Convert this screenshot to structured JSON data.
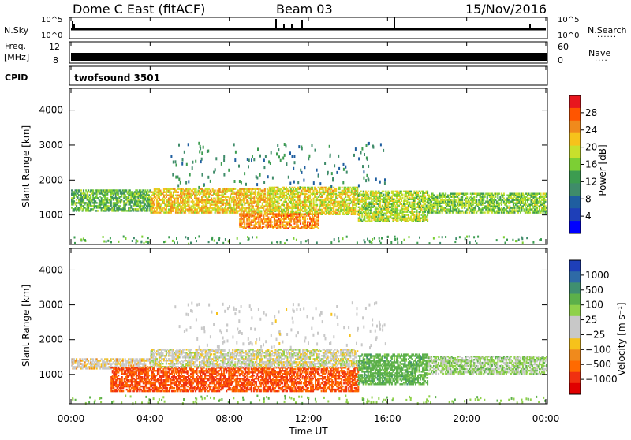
{
  "header": {
    "site": "Dome C East (fitACF)",
    "beam": "Beam 03",
    "date": "15/Nov/2016"
  },
  "strip": {
    "nsky_label": "N.Sky",
    "nsky_top": "10^5",
    "nsky_bottom": "10^0",
    "nsearch_label": "N.Search",
    "nsearch_top": "10^5",
    "nsearch_bottom": "10^0",
    "freq_label": "Freq.",
    "freq_unit": "[MHz]",
    "freq_top": "12",
    "freq_bottom": "8",
    "nave_label": "Nave",
    "nave_top": "60",
    "nave_bottom": "0",
    "cpid_label": "CPID",
    "cpid_value": "twofsound 3501"
  },
  "power_panel": {
    "ylabel": "Slant Range [km]",
    "cbar_label": "Power [dB]",
    "cbar_ticks": [
      "28",
      "24",
      "20",
      "16",
      "12",
      "8",
      "4"
    ],
    "cbar_colors": [
      "#e8161e",
      "#ff5500",
      "#f08a1c",
      "#f6c21b",
      "#c8e02c",
      "#7ccf34",
      "#3c9c50",
      "#3f8c6a",
      "#1f5ea0",
      "#1e3fb8",
      "#0000ff"
    ]
  },
  "velocity_panel": {
    "ylabel": "Slant Range [km]",
    "cbar_label": "Velocity [m s⁻¹]",
    "cbar_ticks": [
      "1000",
      "500",
      "100",
      "25",
      "−25",
      "−100",
      "−500",
      "−1000"
    ],
    "cbar_colors": [
      "#1e3fb8",
      "#2e6aa6",
      "#3f8f70",
      "#5cb04a",
      "#8fd14a",
      "#c8c8c8",
      "#c8c8c8",
      "#f6c21b",
      "#f08a1c",
      "#ff6a00",
      "#f03010",
      "#e00000"
    ]
  },
  "xaxis": {
    "label": "Time UT",
    "ticks": [
      "00:00",
      "04:00",
      "08:00",
      "12:00",
      "16:00",
      "20:00",
      "00:00"
    ]
  },
  "chart_data": [
    {
      "type": "heatmap",
      "title": "Dome C East (fitACF)  Beam 03  15/Nov/2016",
      "xlabel": "Time UT",
      "ylabel": "Slant Range [km]",
      "colorbar_label": "Power [dB]",
      "x_range_hours": [
        0,
        24
      ],
      "ylim": [
        180,
        4600
      ],
      "yticks": [
        1000,
        2000,
        3000,
        4000
      ],
      "clim": [
        0,
        32
      ],
      "regions": [
        {
          "t": [
            0.0,
            4.0
          ],
          "range": [
            1100,
            1700
          ],
          "level": 14
        },
        {
          "t": [
            4.0,
            10.0
          ],
          "range": [
            1050,
            1750
          ],
          "level": 22
        },
        {
          "t": [
            10.0,
            14.5
          ],
          "range": [
            1000,
            1800
          ],
          "level": 20
        },
        {
          "t": [
            14.5,
            18.0
          ],
          "range": [
            800,
            1700
          ],
          "level": 18
        },
        {
          "t": [
            18.0,
            24.0
          ],
          "range": [
            1050,
            1600
          ],
          "level": 16
        },
        {
          "t": [
            8.5,
            12.5
          ],
          "range": [
            600,
            1050
          ],
          "level": 26
        }
      ]
    },
    {
      "type": "heatmap",
      "xlabel": "Time UT",
      "ylabel": "Slant Range [km]",
      "colorbar_label": "Velocity [m s^-1]",
      "x_range_hours": [
        0,
        24
      ],
      "ylim": [
        180,
        4600
      ],
      "yticks": [
        1000,
        2000,
        3000,
        4000
      ],
      "clim": [
        -1000,
        1000
      ],
      "regions": [
        {
          "t": [
            0.0,
            4.0
          ],
          "range": [
            1150,
            1450
          ],
          "velocity": -10
        },
        {
          "t": [
            2.0,
            14.5
          ],
          "range": [
            500,
            1200
          ],
          "velocity": -200
        },
        {
          "t": [
            4.0,
            14.5
          ],
          "range": [
            1200,
            1700
          ],
          "velocity": 10
        },
        {
          "t": [
            14.5,
            18.0
          ],
          "range": [
            700,
            1600
          ],
          "velocity": 150
        },
        {
          "t": [
            18.0,
            24.0
          ],
          "range": [
            1000,
            1500
          ],
          "velocity": 60
        }
      ]
    }
  ]
}
